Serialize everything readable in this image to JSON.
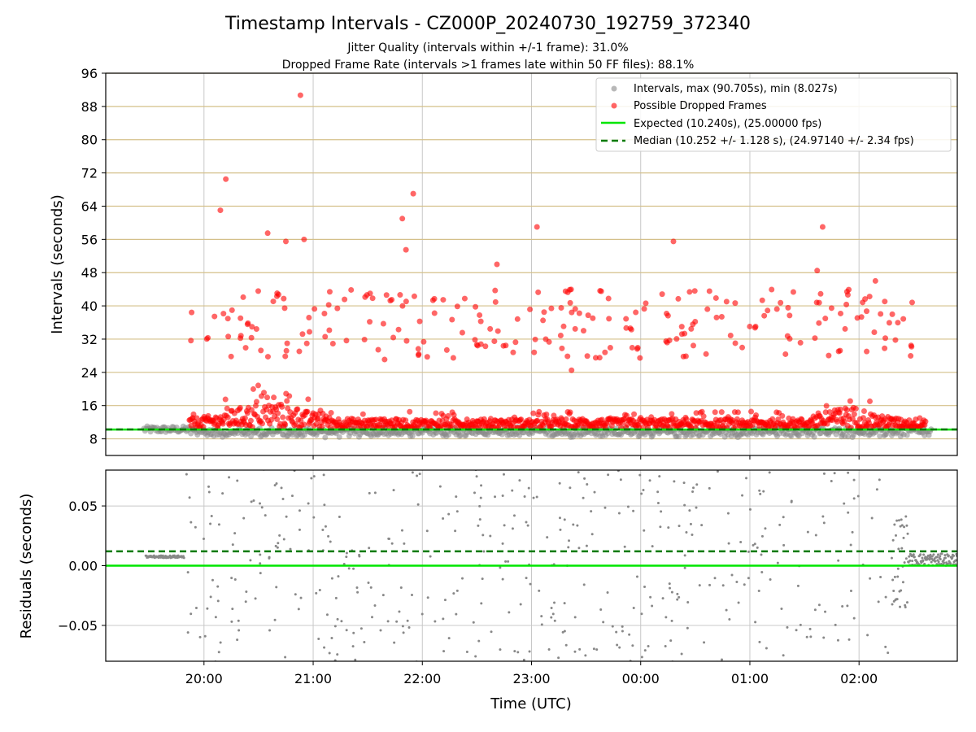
{
  "header": {
    "title": "Timestamp Intervals - CZ000P_20240730_192759_372340",
    "subtitle_1": "Jitter Quality (intervals within +/-1 frame): 31.0%",
    "subtitle_2": "Dropped Frame Rate (intervals >1 frames late within 50 FF files): 88.1%"
  },
  "colors": {
    "intervals": "#888888",
    "dropped": "#ff0000",
    "expected": "#00e600",
    "median": "#007a00",
    "ygrid_top": "#d4c08a",
    "xgrid": "#c8c8c8"
  },
  "chart_data": [
    {
      "type": "scatter",
      "ylabel": "Intervals (seconds)",
      "ylim": [
        4,
        96
      ],
      "yticks": [
        "8",
        "16",
        "24",
        "32",
        "40",
        "48",
        "56",
        "64",
        "72",
        "80",
        "88",
        "96"
      ],
      "grid": true,
      "legend_position": "top-right",
      "legend": [
        "Intervals, max (90.705s), min (8.027s)",
        "Possible Dropped Frames",
        "Expected (10.240s), (25.00000 fps)",
        "Median (10.252 +/- 1.128 s), (24.97140 +/- 2.34 fps)"
      ],
      "expected_value": 10.24,
      "median_value": 10.252,
      "highlighted_points": [
        {
          "x": "20:53",
          "y": 90.7
        },
        {
          "x": "20:12",
          "y": 70.5
        },
        {
          "x": "20:09",
          "y": 63.0
        },
        {
          "x": "21:55",
          "y": 67.0
        },
        {
          "x": "21:49",
          "y": 61.0
        },
        {
          "x": "21:51",
          "y": 53.5
        },
        {
          "x": "20:35",
          "y": 57.5
        },
        {
          "x": "20:45",
          "y": 55.5
        },
        {
          "x": "20:55",
          "y": 56.0
        },
        {
          "x": "23:03",
          "y": 59.0
        },
        {
          "x": "00:18",
          "y": 55.5
        },
        {
          "x": "01:40",
          "y": 59.0
        },
        {
          "x": "01:37",
          "y": 48.5
        },
        {
          "x": "02:09",
          "y": 46.0
        },
        {
          "x": "22:41",
          "y": 50.0
        },
        {
          "x": "23:22",
          "y": 24.5
        }
      ]
    },
    {
      "type": "scatter",
      "xlabel": "Time (UTC)",
      "ylabel": "Residuals (seconds)",
      "ylim": [
        -0.08,
        0.08
      ],
      "yticks": [
        "−0.05",
        "0.00",
        "0.05"
      ],
      "xticks": [
        "20:00",
        "21:00",
        "22:00",
        "23:00",
        "00:00",
        "01:00",
        "02:00"
      ],
      "x_range": [
        "19:06",
        "02:54"
      ],
      "grid": true,
      "expected_value": 0.0,
      "median_value": 0.012
    }
  ]
}
